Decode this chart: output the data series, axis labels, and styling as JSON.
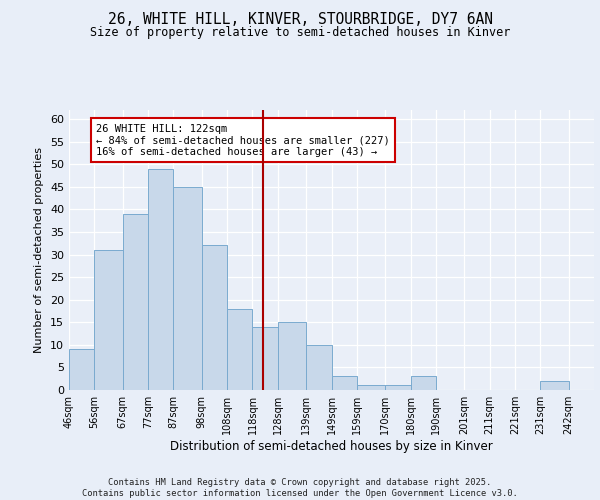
{
  "title1": "26, WHITE HILL, KINVER, STOURBRIDGE, DY7 6AN",
  "title2": "Size of property relative to semi-detached houses in Kinver",
  "xlabel": "Distribution of semi-detached houses by size in Kinver",
  "ylabel": "Number of semi-detached properties",
  "bins": [
    46,
    56,
    67,
    77,
    87,
    98,
    108,
    118,
    128,
    139,
    149,
    159,
    170,
    180,
    190,
    201,
    211,
    221,
    231,
    242,
    252
  ],
  "counts": [
    9,
    31,
    39,
    49,
    45,
    32,
    18,
    14,
    15,
    10,
    3,
    1,
    1,
    3,
    0,
    0,
    0,
    0,
    2,
    0
  ],
  "bar_color": "#c8d8ea",
  "bar_edge_color": "#7aaacf",
  "vline_x": 122,
  "vline_color": "#aa0000",
  "annotation_text": "26 WHITE HILL: 122sqm\n← 84% of semi-detached houses are smaller (227)\n16% of semi-detached houses are larger (43) →",
  "annotation_box_color": "#ffffff",
  "annotation_box_edge": "#cc0000",
  "ylim": [
    0,
    62
  ],
  "yticks": [
    0,
    5,
    10,
    15,
    20,
    25,
    30,
    35,
    40,
    45,
    50,
    55,
    60
  ],
  "footer": "Contains HM Land Registry data © Crown copyright and database right 2025.\nContains public sector information licensed under the Open Government Licence v3.0.",
  "bg_color": "#e8eef8",
  "plot_bg_color": "#eaeff8"
}
